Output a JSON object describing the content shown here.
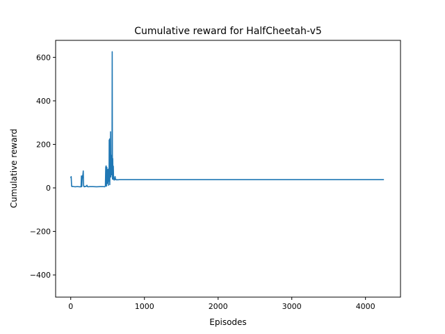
{
  "chart_data": {
    "type": "line",
    "title": "Cumulative reward for HalfCheetah-v5",
    "xlabel": "Episodes",
    "ylabel": "Cumulative reward",
    "xlim": [
      -205,
      4475
    ],
    "ylim": [
      -502,
      678
    ],
    "xticks": [
      0,
      1000,
      2000,
      3000,
      4000
    ],
    "xtick_labels": [
      "0",
      "1000",
      "2000",
      "3000",
      "4000"
    ],
    "yticks": [
      -400,
      -200,
      0,
      200,
      400,
      600
    ],
    "ytick_labels": [
      "−400",
      "−200",
      "0",
      "200",
      "400",
      "600"
    ],
    "grid": false,
    "series": [
      {
        "color": "#1f77b4",
        "x": [
          0,
          6,
          12,
          18,
          25,
          40,
          60,
          90,
          120,
          140,
          145,
          150,
          155,
          160,
          165,
          170,
          175,
          180,
          185,
          190,
          200,
          210,
          220,
          225,
          230,
          240,
          260,
          300,
          350,
          400,
          440,
          460,
          470,
          475,
          480,
          485,
          490,
          495,
          500,
          505,
          510,
          515,
          518,
          520,
          522,
          525,
          528,
          530,
          533,
          536,
          540,
          544,
          548,
          552,
          556,
          560,
          563,
          566,
          570,
          574,
          578,
          582,
          585,
          588,
          590,
          592,
          595,
          598,
          602,
          606,
          610,
          615,
          620,
          625,
          630,
          640,
          660,
          700,
          800,
          1000,
          1500,
          2000,
          2500,
          3000,
          3500,
          4000,
          4250
        ],
        "y": [
          45,
          52,
          8,
          6,
          7,
          6,
          5,
          6,
          5,
          5,
          55,
          6,
          40,
          55,
          60,
          78,
          10,
          6,
          5,
          7,
          6,
          8,
          12,
          6,
          6,
          5,
          6,
          6,
          5,
          6,
          6,
          5,
          8,
          95,
          101,
          8,
          95,
          20,
          25,
          85,
          12,
          60,
          90,
          40,
          220,
          30,
          225,
          15,
          150,
          80,
          258,
          50,
          120,
          60,
          150,
          90,
          626,
          40,
          135,
          45,
          100,
          38,
          38,
          40,
          36,
          42,
          38,
          48,
          52,
          44,
          38,
          37,
          38,
          37,
          38,
          37,
          38,
          38,
          38,
          38,
          38,
          38,
          38,
          38,
          38,
          38,
          38
        ]
      }
    ]
  }
}
